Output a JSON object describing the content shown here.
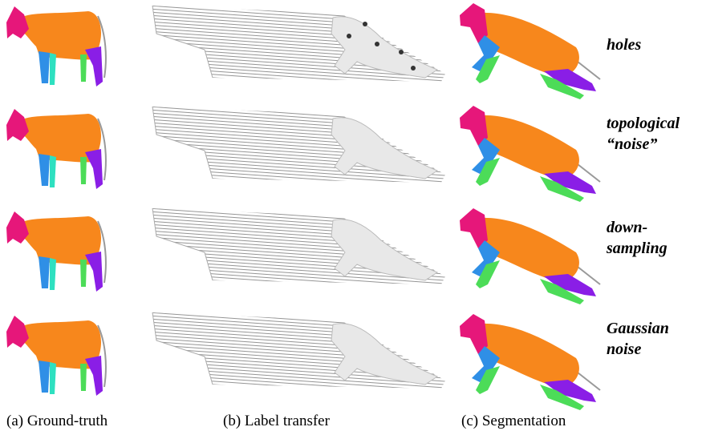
{
  "rows": [
    {
      "label": [
        "holes"
      ]
    },
    {
      "label": [
        "topological",
        "“noise”"
      ]
    },
    {
      "label": [
        "down-",
        "sampling"
      ]
    },
    {
      "label": [
        "Gaussian",
        "noise"
      ]
    }
  ],
  "captions": [
    "(a) Ground-truth",
    "(b) Label transfer",
    "(c) Segmentation"
  ]
}
